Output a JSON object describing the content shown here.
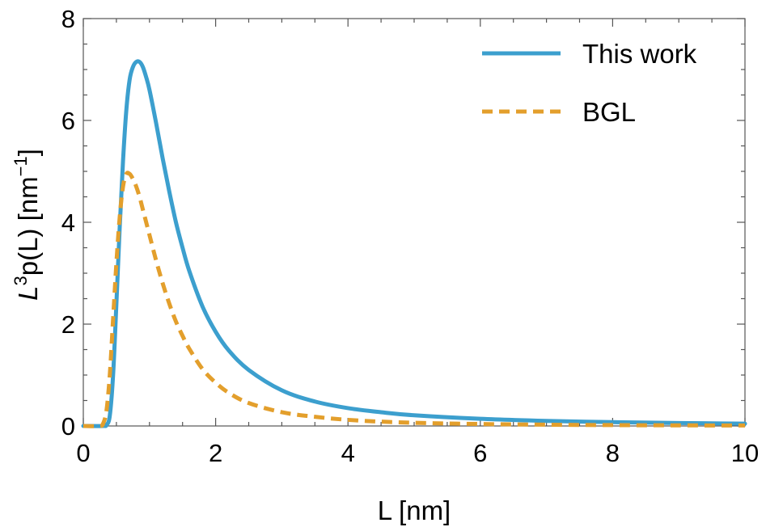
{
  "chart_data": {
    "type": "line",
    "xlabel": "L [nm]",
    "ylabel": {
      "base": "L",
      "sup": "3",
      "mid": "p(L) [nm",
      "sup2": "−1",
      "end": "]"
    },
    "xlim": [
      0,
      10
    ],
    "ylim": [
      0,
      8
    ],
    "xticks": [
      0,
      2,
      4,
      6,
      8,
      10
    ],
    "xtick_labels": [
      "0",
      "2",
      "4",
      "6",
      "8",
      "10"
    ],
    "yticks": [
      0,
      2,
      4,
      6,
      8
    ],
    "ytick_labels": [
      "0",
      "2",
      "4",
      "6",
      "8"
    ],
    "grid": false,
    "legend_position": "top-right",
    "series": [
      {
        "name": "This work",
        "style": "solid",
        "color": "#3c9fce",
        "x": [
          0,
          0.3,
          0.35,
          0.4,
          0.45,
          0.5,
          0.55,
          0.6,
          0.65,
          0.7,
          0.75,
          0.8,
          0.85,
          0.9,
          0.95,
          1.0,
          1.1,
          1.2,
          1.3,
          1.4,
          1.5,
          1.6,
          1.8,
          2.0,
          2.2,
          2.5,
          3.0,
          3.5,
          4.0,
          4.5,
          5.0,
          6.0,
          7.0,
          8.0,
          9.0,
          10.0
        ],
        "y": [
          0,
          0.0,
          0.02,
          0.2,
          1.0,
          2.4,
          3.9,
          5.2,
          6.2,
          6.8,
          7.05,
          7.15,
          7.15,
          7.05,
          6.85,
          6.6,
          5.95,
          5.25,
          4.6,
          4.0,
          3.5,
          3.05,
          2.35,
          1.85,
          1.48,
          1.1,
          0.7,
          0.48,
          0.35,
          0.27,
          0.21,
          0.14,
          0.1,
          0.075,
          0.058,
          0.045
        ]
      },
      {
        "name": "BGL",
        "style": "dashed",
        "color": "#e39f2c",
        "x": [
          0,
          0.25,
          0.3,
          0.35,
          0.4,
          0.45,
          0.5,
          0.55,
          0.6,
          0.65,
          0.7,
          0.75,
          0.8,
          0.85,
          0.9,
          1.0,
          1.1,
          1.2,
          1.3,
          1.4,
          1.5,
          1.6,
          1.8,
          2.0,
          2.2,
          2.5,
          3.0,
          3.5,
          4.0,
          4.5,
          5.0,
          6.0,
          7.0,
          8.0,
          9.0,
          10.0
        ],
        "y": [
          0,
          0.0,
          0.05,
          0.3,
          1.0,
          2.1,
          3.2,
          4.1,
          4.7,
          4.95,
          4.95,
          4.85,
          4.7,
          4.5,
          4.25,
          3.75,
          3.25,
          2.8,
          2.4,
          2.05,
          1.77,
          1.52,
          1.12,
          0.85,
          0.65,
          0.45,
          0.27,
          0.18,
          0.12,
          0.085,
          0.062,
          0.038,
          0.025,
          0.017,
          0.012,
          0.009
        ]
      }
    ]
  }
}
